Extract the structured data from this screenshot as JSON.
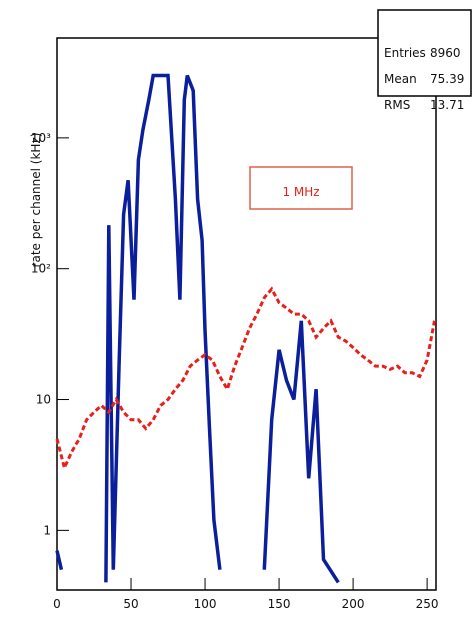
{
  "chart_data": {
    "type": "line",
    "ylabel": "rate per channel (kHz)",
    "annotation": "1 MHz",
    "yscale": "log",
    "xlim": [
      0,
      256
    ],
    "ylim": [
      0.35,
      5800
    ],
    "xticks": [
      0,
      50,
      100,
      150,
      200,
      250
    ],
    "yticks": [
      1,
      10,
      {
        "value": 100,
        "label": "10²"
      },
      {
        "value": 1000,
        "label": "10³"
      }
    ],
    "series": [
      {
        "color": "#0b1f9c",
        "style": "solid",
        "x": [
          0,
          3,
          6,
          33,
          35,
          38,
          42,
          45,
          48,
          52,
          55,
          58,
          62,
          65,
          70,
          75,
          78,
          80,
          83,
          86,
          88,
          92,
          95,
          98,
          100,
          103,
          106,
          110,
          115,
          140,
          145,
          150,
          155,
          160,
          165,
          170,
          175,
          180,
          190,
          195
        ],
        "values": [
          0.7,
          0.5,
          null,
          0.4,
          215,
          0.5,
          20,
          260,
          475,
          58,
          680,
          1150,
          1950,
          3000,
          3000,
          3000,
          800,
          340,
          58,
          1950,
          3000,
          2300,
          340,
          165,
          34,
          6,
          1.2,
          0.5,
          null,
          0.5,
          7,
          24,
          14,
          10,
          40,
          2.5,
          12,
          0.6,
          0.4,
          null
        ]
      },
      {
        "color": "#e8201a",
        "style": "dashed",
        "x": [
          0,
          5,
          10,
          15,
          20,
          25,
          30,
          35,
          40,
          45,
          50,
          55,
          60,
          65,
          70,
          75,
          80,
          85,
          90,
          95,
          100,
          105,
          110,
          115,
          120,
          125,
          130,
          135,
          140,
          145,
          150,
          155,
          160,
          165,
          170,
          175,
          180,
          185,
          190,
          195,
          200,
          205,
          210,
          215,
          220,
          225,
          230,
          235,
          240,
          245,
          250,
          255
        ],
        "values": [
          5,
          3,
          4,
          5,
          7,
          8,
          9,
          8,
          10,
          8,
          7,
          7,
          6,
          7,
          9,
          10,
          12,
          14,
          18,
          20,
          22,
          20,
          15,
          12,
          18,
          25,
          35,
          45,
          60,
          70,
          55,
          50,
          45,
          45,
          40,
          30,
          35,
          40,
          30,
          28,
          25,
          22,
          20,
          18,
          18,
          17,
          18,
          16,
          16,
          15,
          20,
          40
        ]
      }
    ]
  },
  "stats_box": {
    "rows": [
      [
        "Entries",
        "8960"
      ],
      [
        "Mean",
        "75.39"
      ],
      [
        "RMS",
        "13.71"
      ]
    ]
  }
}
